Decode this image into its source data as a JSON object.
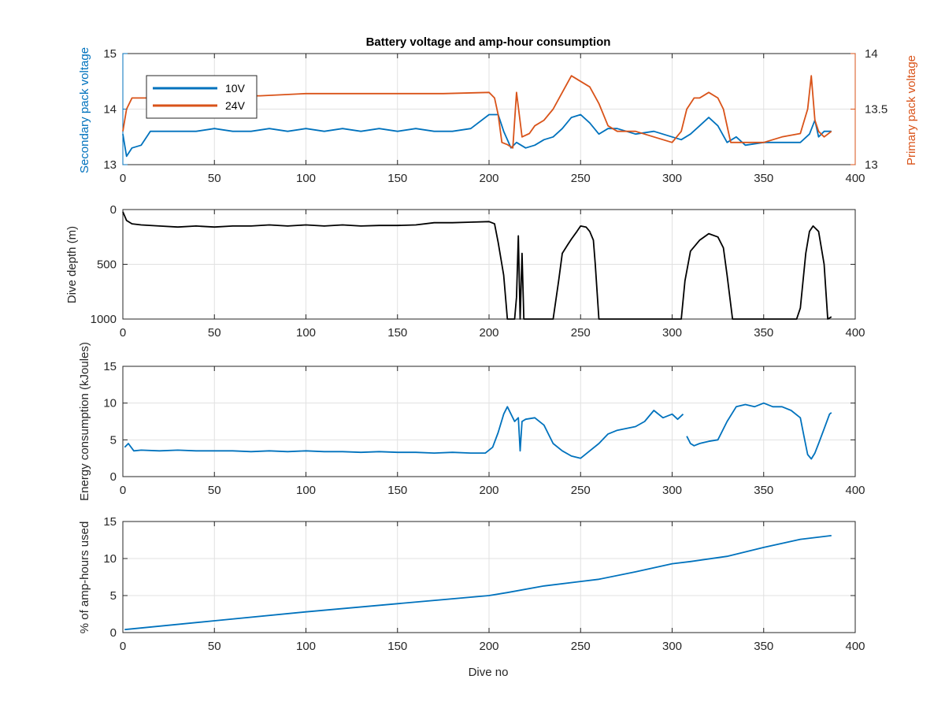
{
  "chart_data": [
    {
      "type": "line",
      "title": "Battery voltage and amp-hour consumption",
      "xlabel": "",
      "xlim": [
        0,
        400
      ],
      "x_ticks": [
        0,
        50,
        100,
        150,
        200,
        250,
        300,
        350,
        400
      ],
      "y_left": {
        "label": "Secondary pack voltage",
        "lim": [
          13,
          15
        ],
        "ticks": [
          13,
          14,
          15
        ],
        "color": "#0072BD"
      },
      "y_right": {
        "label": "Primary pack voltage",
        "lim": [
          13,
          14
        ],
        "ticks": [
          "13",
          "13.5",
          "14"
        ],
        "color": "#D95319"
      },
      "grid": true,
      "legend": {
        "placement": "top-left",
        "entries": [
          "10V",
          "24V"
        ]
      },
      "series": [
        {
          "name": "10V",
          "axis": "left",
          "color": "#0072BD",
          "x": [
            0,
            2,
            5,
            10,
            15,
            20,
            30,
            40,
            50,
            60,
            70,
            80,
            90,
            100,
            110,
            120,
            130,
            140,
            150,
            160,
            170,
            180,
            190,
            200,
            205,
            208,
            212,
            215,
            220,
            225,
            230,
            235,
            240,
            245,
            250,
            255,
            260,
            265,
            270,
            280,
            290,
            300,
            305,
            310,
            315,
            320,
            325,
            330,
            335,
            340,
            350,
            360,
            370,
            375,
            378,
            380,
            383,
            387
          ],
          "values": [
            13.55,
            13.15,
            13.3,
            13.35,
            13.6,
            13.6,
            13.6,
            13.6,
            13.65,
            13.6,
            13.6,
            13.65,
            13.6,
            13.65,
            13.6,
            13.65,
            13.6,
            13.65,
            13.6,
            13.65,
            13.6,
            13.6,
            13.65,
            13.9,
            13.9,
            13.6,
            13.3,
            13.4,
            13.3,
            13.35,
            13.45,
            13.5,
            13.65,
            13.85,
            13.9,
            13.75,
            13.55,
            13.65,
            13.65,
            13.55,
            13.6,
            13.5,
            13.45,
            13.55,
            13.7,
            13.85,
            13.7,
            13.4,
            13.5,
            13.35,
            13.4,
            13.4,
            13.4,
            13.55,
            13.8,
            13.5,
            13.6,
            13.6
          ]
        },
        {
          "name": "24V",
          "axis": "right",
          "color": "#D95319",
          "x": [
            0,
            2,
            5,
            10,
            20,
            30,
            50,
            75,
            100,
            125,
            150,
            175,
            200,
            203,
            205,
            207,
            210,
            213,
            215,
            218,
            222,
            225,
            230,
            235,
            240,
            245,
            250,
            255,
            260,
            265,
            270,
            280,
            290,
            300,
            305,
            308,
            312,
            315,
            320,
            325,
            328,
            332,
            335,
            340,
            350,
            360,
            370,
            374,
            376,
            378,
            380,
            383,
            387
          ],
          "values": [
            13.3,
            13.5,
            13.6,
            13.6,
            13.6,
            13.6,
            13.62,
            13.62,
            13.64,
            13.64,
            13.64,
            13.64,
            13.65,
            13.6,
            13.45,
            13.2,
            13.18,
            13.15,
            13.65,
            13.25,
            13.28,
            13.35,
            13.4,
            13.5,
            13.65,
            13.8,
            13.75,
            13.7,
            13.55,
            13.35,
            13.3,
            13.3,
            13.25,
            13.2,
            13.3,
            13.5,
            13.6,
            13.6,
            13.65,
            13.6,
            13.5,
            13.2,
            13.2,
            13.2,
            13.2,
            13.25,
            13.28,
            13.5,
            13.8,
            13.4,
            13.3,
            13.25,
            13.3
          ]
        }
      ]
    },
    {
      "type": "line",
      "title": "",
      "xlabel": "",
      "ylabel": "Dive depth (m)",
      "xlim": [
        0,
        400
      ],
      "ylim": [
        0,
        1000
      ],
      "y_reversed": true,
      "x_ticks": [
        0,
        50,
        100,
        150,
        200,
        250,
        300,
        350,
        400
      ],
      "y_ticks": [
        0,
        500,
        1000
      ],
      "grid": true,
      "series": [
        {
          "color": "#000000",
          "x": [
            0,
            2,
            5,
            10,
            20,
            30,
            40,
            50,
            60,
            70,
            80,
            90,
            100,
            110,
            120,
            130,
            140,
            150,
            160,
            170,
            180,
            190,
            200,
            203,
            205,
            208,
            210,
            212,
            214,
            215,
            216,
            217,
            218,
            219,
            220,
            225,
            230,
            235,
            238,
            240,
            243,
            245,
            248,
            250,
            253,
            255,
            257,
            258,
            260,
            262,
            270,
            280,
            290,
            300,
            305,
            307,
            310,
            315,
            320,
            325,
            328,
            330,
            333,
            340,
            350,
            360,
            365,
            368,
            370,
            373,
            375,
            377,
            380,
            383,
            385,
            387
          ],
          "values": [
            20,
            100,
            130,
            140,
            150,
            160,
            150,
            160,
            150,
            150,
            140,
            150,
            140,
            150,
            140,
            150,
            145,
            145,
            140,
            120,
            120,
            115,
            110,
            130,
            300,
            600,
            1000,
            1000,
            1000,
            800,
            240,
            1000,
            400,
            1000,
            1000,
            1000,
            1000,
            1000,
            650,
            400,
            320,
            270,
            200,
            150,
            160,
            200,
            280,
            500,
            1000,
            1000,
            1000,
            1000,
            1000,
            1000,
            1000,
            650,
            380,
            280,
            220,
            250,
            350,
            600,
            1000,
            1000,
            1000,
            1000,
            1000,
            1000,
            900,
            400,
            200,
            150,
            200,
            500,
            1000,
            980
          ]
        }
      ]
    },
    {
      "type": "line",
      "title": "",
      "xlabel": "",
      "ylabel": "Energy consumption (kJoules)",
      "xlim": [
        0,
        400
      ],
      "ylim": [
        0,
        15
      ],
      "x_ticks": [
        0,
        50,
        100,
        150,
        200,
        250,
        300,
        350,
        400
      ],
      "y_ticks": [
        0,
        5,
        10,
        15
      ],
      "grid": true,
      "series": [
        {
          "color": "#0072BD",
          "x": [
            1,
            3,
            6,
            10,
            20,
            30,
            40,
            50,
            60,
            70,
            80,
            90,
            100,
            110,
            120,
            130,
            140,
            150,
            160,
            170,
            180,
            190,
            198,
            202,
            205,
            208,
            210,
            212,
            214,
            216,
            217,
            218,
            220,
            225,
            230,
            235,
            240,
            245,
            250,
            255,
            260,
            265,
            270,
            280,
            285,
            290,
            295,
            300,
            303,
            306
          ],
          "values": [
            4,
            4.5,
            3.5,
            3.6,
            3.5,
            3.6,
            3.5,
            3.5,
            3.5,
            3.4,
            3.5,
            3.4,
            3.5,
            3.4,
            3.4,
            3.3,
            3.4,
            3.3,
            3.3,
            3.2,
            3.3,
            3.2,
            3.2,
            4.0,
            6.0,
            8.5,
            9.5,
            8.5,
            7.5,
            8.0,
            3.5,
            7.5,
            7.8,
            8.0,
            7.0,
            4.5,
            3.5,
            2.8,
            2.5,
            3.5,
            4.5,
            5.8,
            6.3,
            6.8,
            7.5,
            9.0,
            8.0,
            8.5,
            7.8,
            8.5
          ]
        },
        {
          "color": "#0072BD",
          "x": [
            308,
            310,
            312,
            315,
            320,
            325,
            330,
            335,
            340,
            345,
            350,
            355,
            360,
            365,
            370,
            372,
            374,
            376,
            378,
            380,
            383,
            386,
            387
          ],
          "values": [
            5.5,
            4.5,
            4.2,
            4.5,
            4.8,
            5.0,
            7.5,
            9.5,
            9.8,
            9.5,
            10.0,
            9.5,
            9.5,
            9.0,
            8.0,
            5.5,
            3.0,
            2.4,
            3.2,
            4.5,
            6.5,
            8.5,
            8.7
          ]
        }
      ]
    },
    {
      "type": "line",
      "title": "",
      "xlabel": "Dive no",
      "ylabel": "% of amp-hours used",
      "xlim": [
        0,
        400
      ],
      "ylim": [
        0,
        15
      ],
      "x_ticks": [
        0,
        50,
        100,
        150,
        200,
        250,
        300,
        350,
        400
      ],
      "y_ticks": [
        0,
        5,
        10,
        15
      ],
      "grid": true,
      "series": [
        {
          "color": "#0072BD",
          "x": [
            1,
            50,
            100,
            150,
            200,
            210,
            230,
            250,
            260,
            280,
            300,
            310,
            330,
            350,
            370,
            387
          ],
          "values": [
            0.4,
            1.6,
            2.8,
            3.9,
            5.0,
            5.4,
            6.3,
            6.9,
            7.2,
            8.2,
            9.3,
            9.6,
            10.3,
            11.5,
            12.6,
            13.1
          ]
        }
      ]
    }
  ]
}
